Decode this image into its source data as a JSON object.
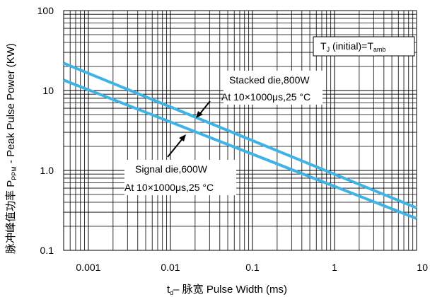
{
  "chart_data": {
    "type": "line",
    "x_scale": "log",
    "y_scale": "log",
    "xlim": [
      0.0005,
      10
    ],
    "ylim": [
      0.1,
      100
    ],
    "grid": true,
    "x_ticks": [
      {
        "value": 0.001,
        "label": "0.001"
      },
      {
        "value": 0.01,
        "label": "0.01"
      },
      {
        "value": 0.1,
        "label": "0.1"
      },
      {
        "value": 1,
        "label": "1"
      },
      {
        "value": 10,
        "label": "10"
      }
    ],
    "y_ticks": [
      {
        "value": 0.1,
        "label": "0.1"
      },
      {
        "value": 1,
        "label": "1.0"
      },
      {
        "value": 10,
        "label": "10"
      },
      {
        "value": 100,
        "label": "100"
      }
    ],
    "xlabel": {
      "main": "t",
      "sub": "d",
      "rest": "– 脉宽 Pulse Width (ms)"
    },
    "ylabel": {
      "main": "脉冲峰值功率 P",
      "sub": "PPM",
      "rest": " - Peak Pulse Power (KW)"
    },
    "legend_box": {
      "t": "T",
      "t_sub": "J",
      "middle": " (initial)=T",
      "amb_sub": "amb"
    },
    "series": [
      {
        "color": "#3eb3e6",
        "x": [
          0.0005,
          10
        ],
        "y": [
          22,
          0.34
        ]
      },
      {
        "color": "#3eb3e6",
        "x": [
          0.0005,
          10
        ],
        "y": [
          13.5,
          0.25
        ]
      }
    ],
    "annotations": [
      {
        "line1": "Stacked die,800W",
        "line2": "At 10×1000μs,25 °C"
      },
      {
        "line1": "Signal die,600W",
        "line2": "At 10×1000μs,25 °C"
      }
    ]
  }
}
